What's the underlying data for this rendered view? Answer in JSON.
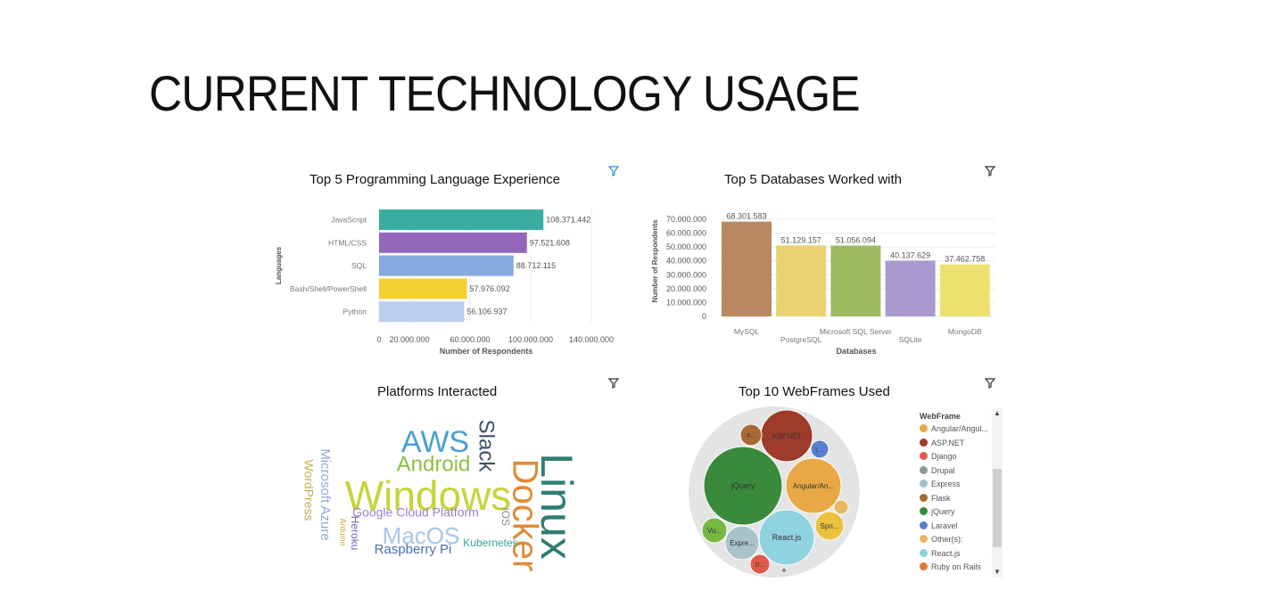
{
  "page": {
    "title": "CURRENT TECHNOLOGY USAGE"
  },
  "panels": {
    "languages": {
      "title": "Top 5 Programming Language Experience"
    },
    "databases": {
      "title": "Top 5 Databases Worked with"
    },
    "platforms": {
      "title": "Platforms Interacted"
    },
    "webframes": {
      "title": "Top 10 WebFrames Used"
    }
  },
  "icons": {
    "filter": "filter-icon"
  },
  "chart_data": [
    {
      "id": "languages",
      "type": "bar",
      "orientation": "horizontal",
      "title": "Top 5 Programming Language Experience",
      "xlabel": "Number of Respondents",
      "ylabel": "Languages",
      "categories": [
        "JavaScript",
        "HTML/CSS",
        "SQL",
        "Bash/Shell/PowerShell",
        "Python"
      ],
      "values": [
        108371442,
        97521608,
        88712115,
        57976092,
        56106937
      ],
      "value_labels": [
        "108.371.442",
        "97.521.608",
        "88.712.115",
        "57.976.092",
        "56.106.937"
      ],
      "colors": [
        "#3aada0",
        "#9467bd",
        "#86a9e0",
        "#f5d033",
        "#b9cdee"
      ],
      "xticks": [
        "0",
        "20.000.000",
        "60.000.000",
        "100.000.000",
        "140.000.000"
      ],
      "xtick_values": [
        0,
        20000000,
        60000000,
        100000000,
        140000000
      ],
      "xlim": [
        0,
        150000000
      ],
      "grid": true
    },
    {
      "id": "databases",
      "type": "bar",
      "orientation": "vertical",
      "title": "Top 5 Databases Worked with",
      "xlabel": "Databases",
      "ylabel": "Number of Respondents",
      "categories": [
        "MySQL",
        "PostgreSQL",
        "Microsoft SQL Server",
        "SQLite",
        "MongoDB"
      ],
      "values": [
        68301583,
        51129157,
        51056094,
        40137629,
        37462758
      ],
      "value_labels": [
        "68.301.583",
        "51.129.157",
        "51.056.094",
        "40.137.629",
        "37.462.758"
      ],
      "colors": [
        "#b98860",
        "#e8d272",
        "#9cbb62",
        "#a899cf",
        "#ede06e"
      ],
      "yticks": [
        "70.000.000",
        "60.000.000",
        "50.000.000",
        "40.000.000",
        "30.000.000",
        "20.000.000",
        "10.000.000",
        "0"
      ],
      "ytick_values": [
        70000000,
        60000000,
        50000000,
        40000000,
        30000000,
        20000000,
        10000000,
        0
      ],
      "ylim": [
        0,
        70000000
      ],
      "grid": true
    },
    {
      "id": "platforms",
      "type": "wordcloud",
      "title": "Platforms Interacted",
      "words": [
        {
          "text": "Windows",
          "color": "#c6d43a"
        },
        {
          "text": "Linux",
          "color": "#2e7d72"
        },
        {
          "text": "Docker",
          "color": "#e08a38"
        },
        {
          "text": "AWS",
          "color": "#4a9fd6"
        },
        {
          "text": "Android",
          "color": "#8cbf45"
        },
        {
          "text": "Slack",
          "color": "#3c4e6e"
        },
        {
          "text": "MacOS",
          "color": "#a9c6ea"
        },
        {
          "text": "Google Cloud Platform",
          "color": "#9a7fce"
        },
        {
          "text": "Microsoft Azure",
          "color": "#8fa9d8"
        },
        {
          "text": "Raspberry Pi",
          "color": "#4a6db0"
        },
        {
          "text": "Kubernetes",
          "color": "#3aa598"
        },
        {
          "text": "WordPress",
          "color": "#c2b24e"
        },
        {
          "text": "iOS",
          "color": "#8a8a8a"
        },
        {
          "text": "Heroku",
          "color": "#7a62b8"
        },
        {
          "text": "Arduino",
          "color": "#d4a43a"
        }
      ]
    },
    {
      "id": "webframes",
      "type": "bubble",
      "title": "Top 10 WebFrames Used",
      "legend_title": "WebFrame",
      "legend_position": "right",
      "legend": [
        {
          "name": "Angular/Angul...",
          "color": "#e8a845"
        },
        {
          "name": "ASP.NET",
          "color": "#9e3b2b"
        },
        {
          "name": "Django",
          "color": "#e05a4a"
        },
        {
          "name": "Drupal",
          "color": "#8c9a96"
        },
        {
          "name": "Express",
          "color": "#9fbfc8"
        },
        {
          "name": "Flask",
          "color": "#a86a34"
        },
        {
          "name": "jQuery",
          "color": "#3a8a3c"
        },
        {
          "name": "Laravel",
          "color": "#5b7fd0"
        },
        {
          "name": "Other(s):",
          "color": "#e8b860"
        },
        {
          "name": "React.js",
          "color": "#8fd3de"
        },
        {
          "name": "Ruby on Rails",
          "color": "#e07a3a"
        }
      ],
      "bubbles": [
        {
          "label": "jQuery",
          "color": "#3a8a3c"
        },
        {
          "label": "React.js",
          "color": "#8fd3de"
        },
        {
          "label": "Angular/An...",
          "color": "#e8a845"
        },
        {
          "label": "ASP.NET",
          "color": "#9e3b2b"
        },
        {
          "label": "Expre...",
          "color": "#a9c4c9"
        },
        {
          "label": "Spri...",
          "color": "#e8c240"
        },
        {
          "label": "Vu...",
          "color": "#77b843"
        },
        {
          "label": "F...",
          "color": "#a86a34"
        },
        {
          "label": "L...",
          "color": "#5b7fd0"
        },
        {
          "label": "D...",
          "color": "#e05a4a"
        },
        {
          "label": "",
          "color": "#e8b860"
        },
        {
          "label": "",
          "color": "#8c9a96"
        }
      ]
    }
  ]
}
